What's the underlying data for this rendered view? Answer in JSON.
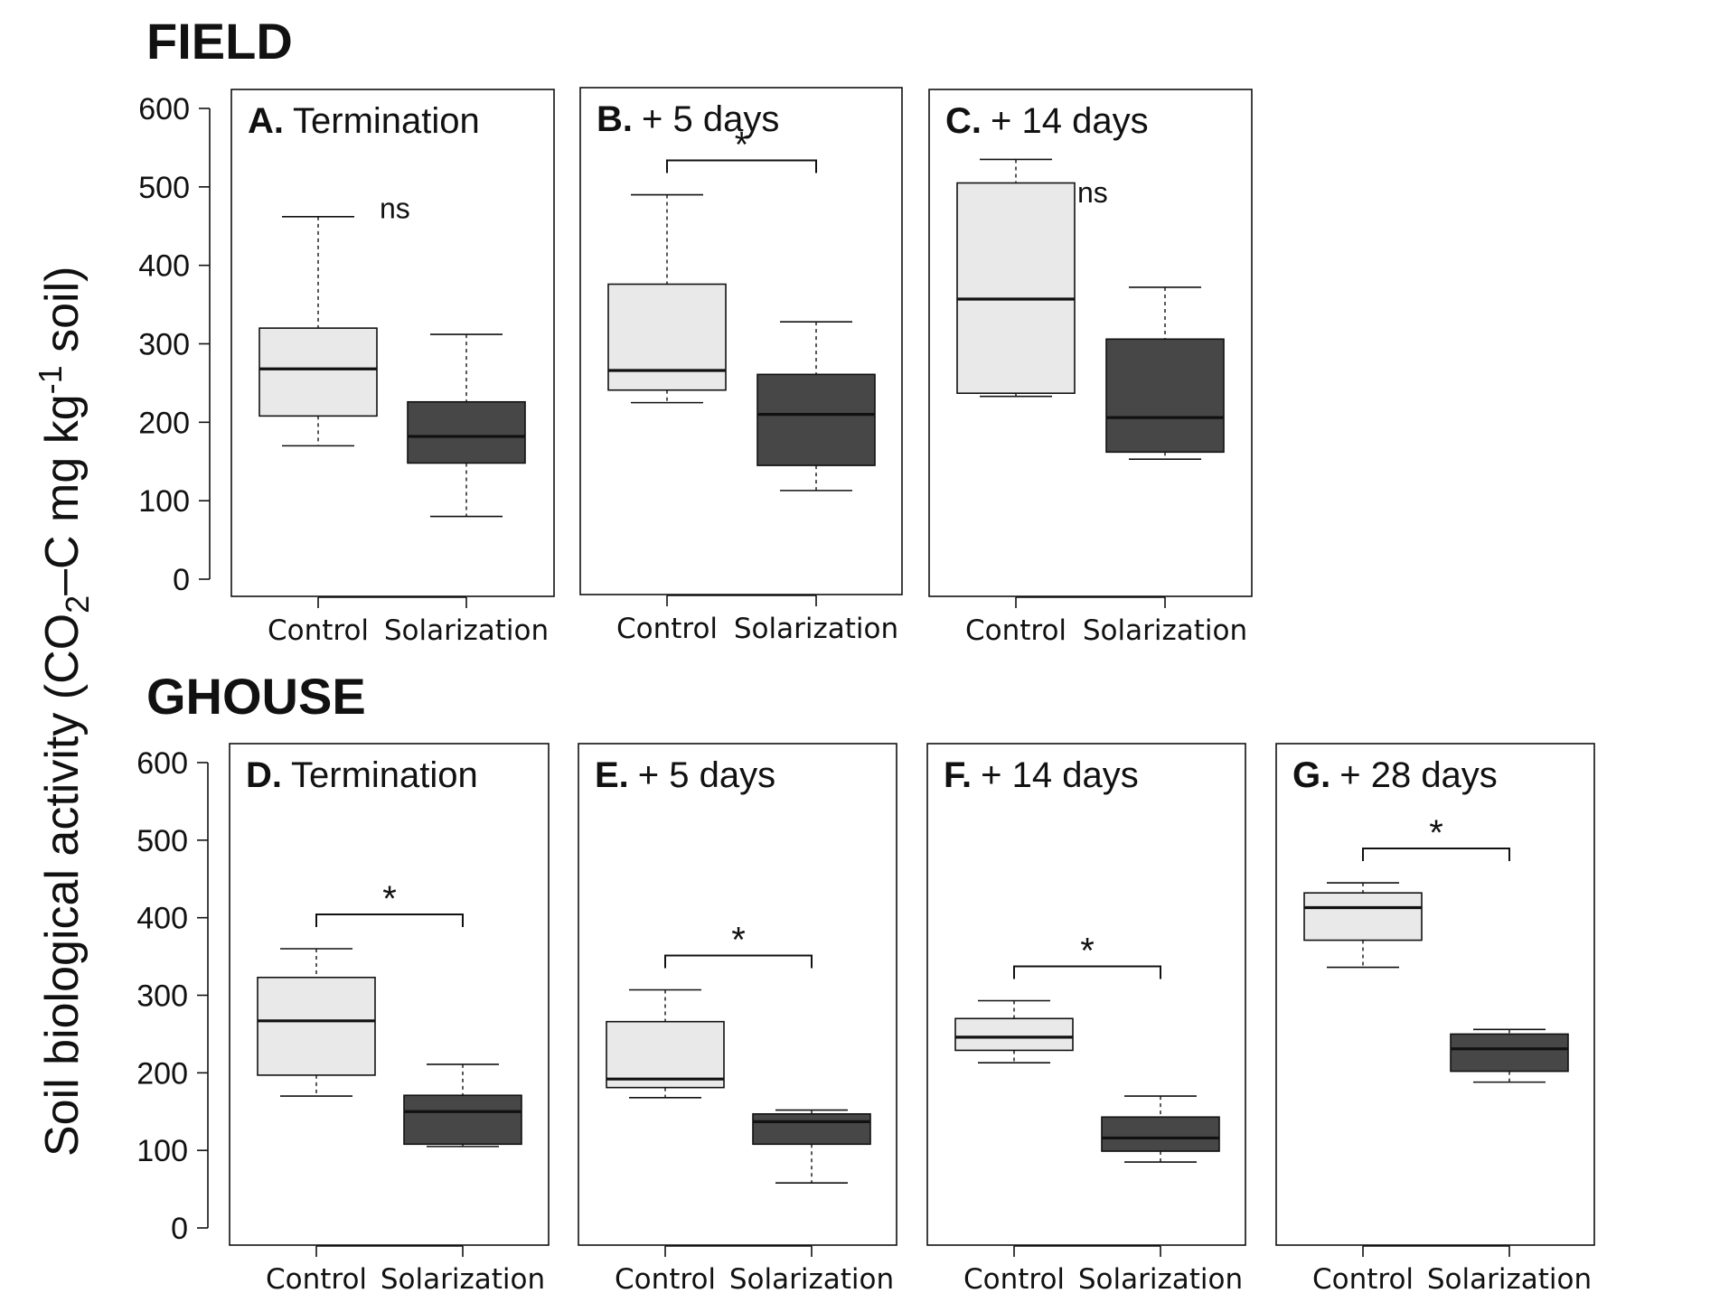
{
  "groups": [
    {
      "label": "FIELD"
    },
    {
      "label": "GHOUSE"
    }
  ],
  "ylabel": {
    "main": "Soil biological activity (CO",
    "sub": "2",
    "mid": "–C mg kg",
    "sup": "-1",
    "end": " soil)"
  },
  "colors": {
    "control": "#e9e9e9",
    "solarization": "#474747",
    "line": "#111111"
  },
  "chart_data": [
    {
      "type": "box",
      "group": "FIELD",
      "letter": "A.",
      "title": "Termination",
      "categories": [
        "Control",
        "Solarization"
      ],
      "ylim": [
        0,
        600
      ],
      "yticks": [
        0,
        100,
        200,
        300,
        400,
        500,
        600
      ],
      "boxes": [
        {
          "whisker_low": 170,
          "q1": 208,
          "median": 268,
          "q3": 320,
          "whisker_high": 462
        },
        {
          "whisker_low": 80,
          "q1": 148,
          "median": 182,
          "q3": 226,
          "whisker_high": 312
        }
      ],
      "significance": {
        "label": "ns",
        "bracket": false
      }
    },
    {
      "type": "box",
      "group": "FIELD",
      "letter": "B.",
      "title": "+ 5 days",
      "categories": [
        "Control",
        "Solarization"
      ],
      "ylim": [
        0,
        600
      ],
      "yticks": [
        0,
        100,
        200,
        300,
        400,
        500,
        600
      ],
      "boxes": [
        {
          "whisker_low": 225,
          "q1": 241,
          "median": 266,
          "q3": 376,
          "whisker_high": 490
        },
        {
          "whisker_low": 113,
          "q1": 145,
          "median": 210,
          "q3": 261,
          "whisker_high": 328
        }
      ],
      "significance": {
        "label": "*",
        "bracket": true
      }
    },
    {
      "type": "box",
      "group": "FIELD",
      "letter": "C.",
      "title": "+ 14 days",
      "categories": [
        "Control",
        "Solarization"
      ],
      "ylim": [
        0,
        600
      ],
      "yticks": [
        0,
        100,
        200,
        300,
        400,
        500,
        600
      ],
      "boxes": [
        {
          "whisker_low": 233,
          "q1": 237,
          "median": 357,
          "q3": 505,
          "whisker_high": 535
        },
        {
          "whisker_low": 153,
          "q1": 162,
          "median": 206,
          "q3": 306,
          "whisker_high": 372
        }
      ],
      "significance": {
        "label": "ns",
        "bracket": false
      }
    },
    {
      "type": "box",
      "group": "GHOUSE",
      "letter": "D.",
      "title": "Termination",
      "categories": [
        "Control",
        "Solarization"
      ],
      "ylim": [
        0,
        600
      ],
      "yticks": [
        0,
        100,
        200,
        300,
        400,
        500,
        600
      ],
      "boxes": [
        {
          "whisker_low": 170,
          "q1": 197,
          "median": 267,
          "q3": 323,
          "whisker_high": 360
        },
        {
          "whisker_low": 105,
          "q1": 108,
          "median": 150,
          "q3": 171,
          "whisker_high": 211
        }
      ],
      "significance": {
        "label": "*",
        "bracket": true
      }
    },
    {
      "type": "box",
      "group": "GHOUSE",
      "letter": "E.",
      "title": "+ 5 days",
      "categories": [
        "Control",
        "Solarization"
      ],
      "ylim": [
        0,
        600
      ],
      "yticks": [
        0,
        100,
        200,
        300,
        400,
        500,
        600
      ],
      "boxes": [
        {
          "whisker_low": 168,
          "q1": 181,
          "median": 192,
          "q3": 266,
          "whisker_high": 307
        },
        {
          "whisker_low": 58,
          "q1": 108,
          "median": 137,
          "q3": 147,
          "whisker_high": 152
        }
      ],
      "significance": {
        "label": "*",
        "bracket": true
      }
    },
    {
      "type": "box",
      "group": "GHOUSE",
      "letter": "F.",
      "title": "+ 14 days",
      "categories": [
        "Control",
        "Solarization"
      ],
      "ylim": [
        0,
        600
      ],
      "yticks": [
        0,
        100,
        200,
        300,
        400,
        500,
        600
      ],
      "boxes": [
        {
          "whisker_low": 213,
          "q1": 229,
          "median": 246,
          "q3": 270,
          "whisker_high": 293
        },
        {
          "whisker_low": 85,
          "q1": 99,
          "median": 116,
          "q3": 143,
          "whisker_high": 170
        }
      ],
      "significance": {
        "label": "*",
        "bracket": true
      }
    },
    {
      "type": "box",
      "group": "GHOUSE",
      "letter": "G.",
      "title": "+ 28 days",
      "categories": [
        "Control",
        "Solarization"
      ],
      "ylim": [
        0,
        600
      ],
      "yticks": [
        0,
        100,
        200,
        300,
        400,
        500,
        600
      ],
      "boxes": [
        {
          "whisker_low": 336,
          "q1": 371,
          "median": 413,
          "q3": 432,
          "whisker_high": 445
        },
        {
          "whisker_low": 188,
          "q1": 202,
          "median": 231,
          "q3": 250,
          "whisker_high": 256
        }
      ],
      "significance": {
        "label": "*",
        "bracket": true
      }
    }
  ]
}
